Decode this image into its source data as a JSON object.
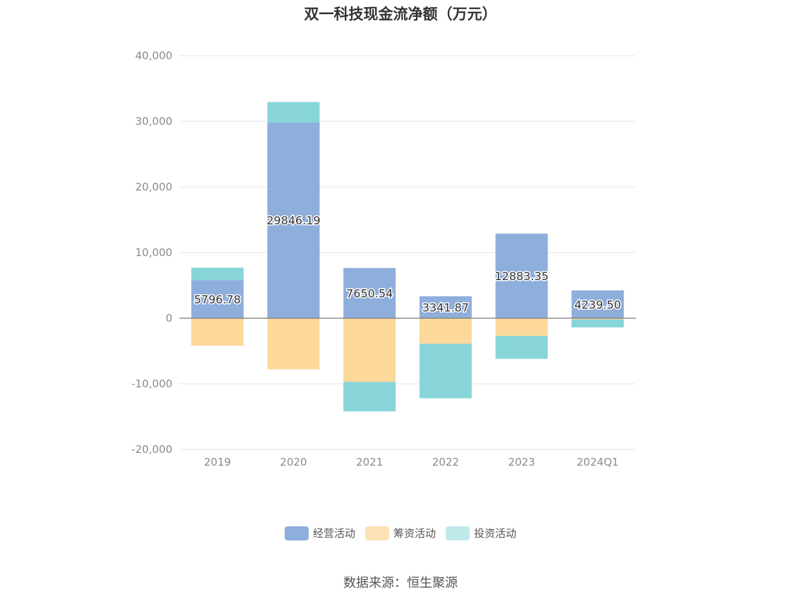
{
  "chart_data": {
    "type": "bar",
    "stacked": true,
    "title": "双一科技现金流净额（万元）",
    "categories": [
      "2019",
      "2020",
      "2021",
      "2022",
      "2023",
      "2024Q1"
    ],
    "series": [
      {
        "name": "经营活动",
        "color": "#8eaedb",
        "values": [
          5796.78,
          29846.19,
          7650.54,
          3341.87,
          12883.35,
          4239.5
        ],
        "labels": [
          "5796.78",
          "29846.19",
          "7650.54",
          "3341.87",
          "12883.35",
          "4239.50"
        ]
      },
      {
        "name": "筹资活动",
        "color": "#fdd89b",
        "values": [
          -4200,
          -7800,
          -9700,
          -3900,
          -2700,
          -200
        ]
      },
      {
        "name": "投资活动",
        "color": "#87d5d9",
        "values": [
          1900,
          3100,
          -4500,
          -8300,
          -3500,
          -1200
        ]
      }
    ],
    "ylim": [
      -20000,
      40000
    ],
    "yticks": [
      -20000,
      -10000,
      0,
      10000,
      20000,
      30000,
      40000
    ],
    "ytick_labels": [
      "-20,000",
      "-10,000",
      "0",
      "10,000",
      "20,000",
      "30,000",
      "40,000"
    ],
    "grid": true,
    "legend_position": "bottom",
    "legend_colors": [
      "#8eaedb",
      "#fde2b5",
      "#bfe9eb"
    ]
  },
  "source": "数据来源：恒生聚源"
}
